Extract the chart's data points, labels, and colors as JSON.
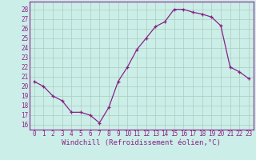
{
  "x": [
    0,
    1,
    2,
    3,
    4,
    5,
    6,
    7,
    8,
    9,
    10,
    11,
    12,
    13,
    14,
    15,
    16,
    17,
    18,
    19,
    20,
    21,
    22,
    23
  ],
  "y": [
    20.5,
    20.0,
    19.0,
    18.5,
    17.3,
    17.3,
    17.0,
    16.2,
    17.8,
    20.5,
    22.0,
    23.8,
    25.0,
    26.2,
    26.7,
    28.0,
    28.0,
    27.7,
    27.5,
    27.2,
    26.3,
    22.0,
    21.5,
    20.8
  ],
  "line_color": "#882288",
  "marker": "+",
  "xlabel": "Windchill (Refroidissement éolien,°C)",
  "xtick_labels": [
    "0",
    "1",
    "2",
    "3",
    "4",
    "5",
    "6",
    "7",
    "8",
    "9",
    "10",
    "11",
    "12",
    "13",
    "14",
    "15",
    "16",
    "17",
    "18",
    "19",
    "20",
    "21",
    "22",
    "23"
  ],
  "ytick_labels": [
    "16",
    "17",
    "18",
    "19",
    "20",
    "21",
    "22",
    "23",
    "24",
    "25",
    "26",
    "27",
    "28"
  ],
  "ylim": [
    15.5,
    28.8
  ],
  "xlim": [
    -0.5,
    23.5
  ],
  "bg_color": "#cceee8",
  "grid_color": "#aaccbb",
  "tick_fontsize": 5.5,
  "xlabel_fontsize": 6.5
}
